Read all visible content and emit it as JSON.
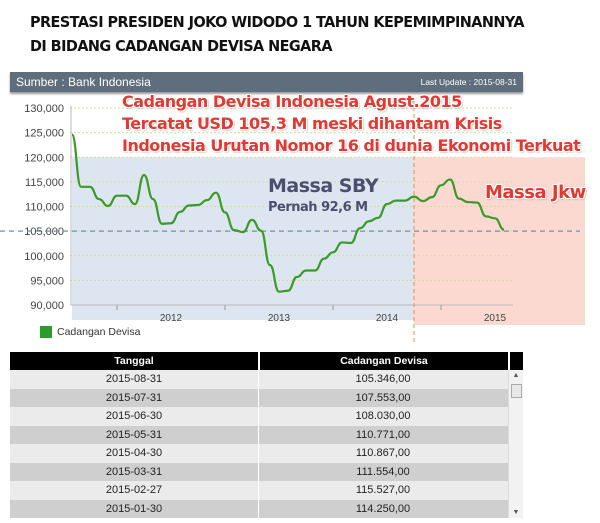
{
  "title": {
    "line1": "PRESTASI PRESIDEN JOKO WIDODO 1 TAHUN KEPEMIMPINANNYA",
    "line2": "DI BIDANG CADANGAN DEVISA NEGARA"
  },
  "panel": {
    "source": "Sumber : Bank Indonesia",
    "last_update": "Last Update : 2015-08-31"
  },
  "annotations": {
    "headline1": "Cadangan Devisa Indonesia Agust.2015",
    "headline2": "Tercatat USD 105,3 M meski dihantam Krisis",
    "headline3": "Indonesia Urutan Nomor 16 di dunia Ekonomi Terkuat",
    "sby": "Massa SBY",
    "sby_low": "Pernah 92,6 M",
    "jkw": "Massa Jkw"
  },
  "colors": {
    "line": "#3a9a2a",
    "sby_region": "#dde6f0",
    "jkw_region": "#fbd9d0",
    "annotation_red": "#e23a33",
    "reference_line": "#6f8fb0",
    "divider": "#e8a060"
  },
  "chart_data": {
    "type": "line",
    "ylim": [
      90000,
      130000
    ],
    "yticks": [
      "130,000",
      "125,000",
      "120,000",
      "115,000",
      "110,000",
      "105,000",
      "100,000",
      "95,000",
      "90,000"
    ],
    "xticks": [
      "2012",
      "2013",
      "2014",
      "2015"
    ],
    "grid": true,
    "legend": {
      "position": "bottom-left",
      "label": "Cadangan Devisa"
    },
    "reference_y": 105000,
    "divider_x": "2014-10",
    "series": [
      {
        "name": "Cadangan Devisa",
        "x": [
          "2011-08",
          "2011-09",
          "2011-10",
          "2011-11",
          "2011-12",
          "2012-01",
          "2012-02",
          "2012-03",
          "2012-04",
          "2012-05",
          "2012-06",
          "2012-07",
          "2012-08",
          "2012-09",
          "2012-10",
          "2012-11",
          "2012-12",
          "2013-01",
          "2013-02",
          "2013-03",
          "2013-04",
          "2013-05",
          "2013-06",
          "2013-07",
          "2013-08",
          "2013-09",
          "2013-10",
          "2013-11",
          "2013-12",
          "2014-01",
          "2014-02",
          "2014-03",
          "2014-04",
          "2014-05",
          "2014-06",
          "2014-07",
          "2014-08",
          "2014-09",
          "2014-10",
          "2014-11",
          "2014-12",
          "2015-01",
          "2015-02",
          "2015-03",
          "2015-04",
          "2015-05",
          "2015-06",
          "2015-07",
          "2015-08"
        ],
        "values": [
          124600,
          114000,
          114000,
          111500,
          110100,
          112200,
          112200,
          110500,
          116400,
          111500,
          106500,
          106600,
          108900,
          110200,
          110300,
          111300,
          112800,
          108800,
          105200,
          104800,
          107300,
          105100,
          98100,
          92700,
          92900,
          95700,
          97000,
          97000,
          99400,
          100700,
          102700,
          102600,
          105600,
          107000,
          107700,
          110500,
          111200,
          111200,
          112000,
          111100,
          111900,
          114300,
          115500,
          111600,
          110900,
          110800,
          108000,
          107600,
          105300
        ]
      }
    ]
  },
  "table": {
    "headers": [
      "Tanggal",
      "Cadangan Devisa"
    ],
    "rows": [
      [
        "2015-08-31",
        "105.346,00"
      ],
      [
        "2015-07-31",
        "107.553,00"
      ],
      [
        "2015-06-30",
        "108.030,00"
      ],
      [
        "2015-05-31",
        "110.771,00"
      ],
      [
        "2015-04-30",
        "110.867,00"
      ],
      [
        "2015-03-31",
        "111.554,00"
      ],
      [
        "2015-02-27",
        "115.527,00"
      ],
      [
        "2015-01-30",
        "114.250,00"
      ]
    ]
  }
}
